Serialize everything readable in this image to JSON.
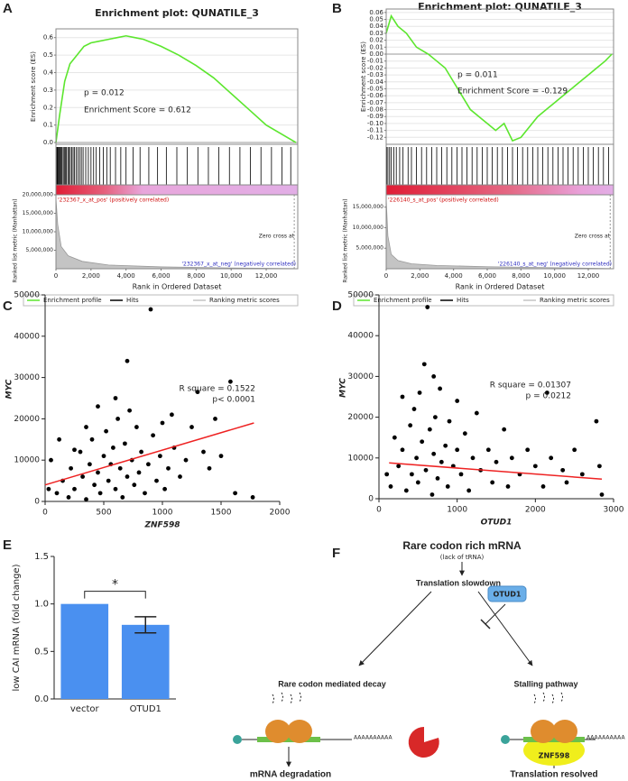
{
  "chart_data": [
    {
      "type": "enrichment",
      "panel": "A",
      "title": "Enrichment plot: QUNATILE_3",
      "ylabel": "Enrichment score (ES)",
      "metric_label": "Ranked list metric (Manhattan)",
      "xlabel": "Rank in Ordered Dataset",
      "annotations": [
        "p = 0.012",
        "Enrichment Score = 0.612"
      ],
      "pos_label": "'232367_x_at_pos' (positively correlated)",
      "neg_label": "'232367_x_at_neg' (negatively correlated)",
      "zero_label": "Zero cross at",
      "x": [
        0,
        200,
        500,
        800,
        1200,
        1600,
        2000,
        2500,
        3000,
        3500,
        4000,
        4500,
        5000,
        6000,
        7000,
        8000,
        9000,
        10000,
        11000,
        12000,
        13700
      ],
      "values": [
        0,
        0.15,
        0.35,
        0.45,
        0.5,
        0.55,
        0.57,
        0.58,
        0.59,
        0.6,
        0.61,
        0.6,
        0.59,
        0.55,
        0.5,
        0.44,
        0.37,
        0.28,
        0.19,
        0.1,
        0
      ],
      "color": "#5ce62e",
      "hits": [
        20,
        60,
        100,
        150,
        200,
        250,
        300,
        350,
        420,
        480,
        550,
        600,
        680,
        750,
        820,
        900,
        980,
        1050,
        1150,
        1250,
        1350,
        1450,
        1550,
        1700,
        1850,
        2000,
        2150,
        2300,
        2500,
        2700,
        2900,
        3100,
        3400,
        3700,
        4000,
        4400,
        4800,
        5300,
        5800,
        6300,
        6900,
        7500,
        8100,
        8700,
        9300,
        9900,
        10500,
        11100,
        11700,
        12300,
        12900,
        13400
      ],
      "hits_color": "#000000",
      "metric_x": [
        0,
        100,
        300,
        700,
        1500,
        3000,
        6000,
        10000,
        13600
      ],
      "metric_values": [
        19000000,
        12000000,
        6000000,
        3500000,
        2000000,
        1000000,
        500000,
        200000,
        50000
      ],
      "metric_color": "#c4c4c4",
      "xlim": [
        0,
        13800
      ],
      "xticks": [
        0,
        {
          "value": 2000,
          "label": "2,000"
        },
        {
          "value": 4000,
          "label": "4,000"
        },
        {
          "value": 6000,
          "label": "6,000"
        },
        {
          "value": 8000,
          "label": "8,000"
        },
        {
          "value": 10000,
          "label": "10,000"
        },
        {
          "value": 12000,
          "label": "12,000"
        }
      ],
      "ylim": [
        -0.01,
        0.65
      ],
      "yticks": [
        {
          "value": 0,
          "label": "0.0"
        },
        0.1,
        0.2,
        0.3,
        0.4,
        0.5,
        0.6
      ],
      "metric_ylim": [
        0,
        20000000
      ],
      "metric_yticks": [
        {
          "value": 5000000,
          "label": "5,000,000"
        },
        {
          "value": 10000000,
          "label": "10,000,000"
        },
        {
          "value": 15000000,
          "label": "15,000,000"
        },
        {
          "value": 20000000,
          "label": "20,000,000"
        }
      ],
      "legend": [
        {
          "name": "Enrichment profile",
          "color": "#5ce62e"
        },
        {
          "name": "Hits",
          "color": "#000000"
        },
        {
          "name": "Ranking metric scores",
          "color": "#c4c4c4"
        }
      ],
      "grid": true
    },
    {
      "type": "enrichment",
      "panel": "B",
      "title": "Enrichment plot: QUNATILE_3",
      "ylabel": "Enrichment score (ES)",
      "metric_label": "Ranked list metric (Manhattan)",
      "xlabel": "Rank in Ordered Dataset",
      "annotations": [
        "p = 0.011",
        "Enrichment Score =   -0.129"
      ],
      "pos_label": "'226140_s_at_pos' (positively correlated)",
      "neg_label": "'226140_s_at_neg' (negatively correlated)",
      "zero_label": "Zero cross at",
      "x": [
        0,
        300,
        700,
        1200,
        1800,
        2500,
        3000,
        3500,
        4000,
        4500,
        5000,
        5500,
        6000,
        6500,
        7000,
        7500,
        8000,
        8500,
        9000,
        9500,
        10000,
        10500,
        11000,
        11500,
        12000,
        12500,
        13000,
        13400
      ],
      "values": [
        0.03,
        0.055,
        0.04,
        0.03,
        0.01,
        0,
        -0.01,
        -0.02,
        -0.04,
        -0.06,
        -0.08,
        -0.09,
        -0.1,
        -0.11,
        -0.1,
        -0.125,
        -0.12,
        -0.105,
        -0.09,
        -0.08,
        -0.07,
        -0.06,
        -0.05,
        -0.04,
        -0.03,
        -0.02,
        -0.01,
        0
      ],
      "color": "#5ce62e",
      "hits": [
        30,
        100,
        200,
        300,
        450,
        600,
        800,
        1000,
        1300,
        1500,
        1800,
        2100,
        2400,
        2700,
        3000,
        3300,
        3600,
        3900,
        4200,
        4500,
        4800,
        5100,
        5400,
        5700,
        6000,
        6300,
        6600,
        6900,
        7200,
        7500,
        7800,
        8100,
        8400,
        8700,
        9000,
        9300,
        9600,
        9900,
        10200,
        10500,
        10800,
        11100,
        11400,
        11700,
        12000,
        12300,
        12600,
        12900,
        13200
      ],
      "hits_color": "#000000",
      "metric_x": [
        0,
        100,
        300,
        700,
        1500,
        3000,
        6000,
        10000,
        13300
      ],
      "metric_values": [
        17000000,
        8000000,
        3500000,
        2000000,
        1200000,
        800000,
        500000,
        250000,
        50000
      ],
      "metric_color": "#c4c4c4",
      "xlim": [
        0,
        13500
      ],
      "xticks": [
        0,
        {
          "value": 2000,
          "label": "2,000"
        },
        {
          "value": 4000,
          "label": "4,000"
        },
        {
          "value": 6000,
          "label": "6,000"
        },
        {
          "value": 8000,
          "label": "8,000"
        },
        {
          "value": 10000,
          "label": "10,000"
        },
        {
          "value": 12000,
          "label": "12,000"
        }
      ],
      "ylim": [
        -0.13,
        0.065
      ],
      "yticks": [
        -0.12,
        -0.11,
        {
          "value": -0.1,
          "label": "-0.10"
        },
        -0.09,
        -0.08,
        -0.07,
        -0.06,
        -0.05,
        -0.04,
        -0.03,
        -0.02,
        -0.01,
        {
          "value": 0,
          "label": "0.00"
        },
        0.01,
        0.02,
        0.03,
        0.04,
        0.05,
        0.06
      ],
      "metric_ylim": [
        0,
        18000000
      ],
      "metric_yticks": [
        {
          "value": 5000000,
          "label": "5,000,000"
        },
        {
          "value": 10000000,
          "label": "10,000,000"
        },
        {
          "value": 15000000,
          "label": "15,000,000"
        }
      ],
      "legend": [
        {
          "name": "Enrichment profile",
          "color": "#5ce62e"
        },
        {
          "name": "Hits",
          "color": "#000000"
        },
        {
          "name": "Ranking metric scores",
          "color": "#c4c4c4"
        }
      ],
      "grid": true
    },
    {
      "type": "scatter",
      "panel": "C",
      "xlabel": "ZNF598",
      "ylabel": "MYC",
      "annotations": [
        "R square = 0.1522",
        "p< 0.0001"
      ],
      "x": [
        100,
        150,
        200,
        220,
        250,
        300,
        320,
        350,
        380,
        400,
        420,
        450,
        470,
        500,
        520,
        540,
        560,
        580,
        600,
        620,
        640,
        660,
        680,
        700,
        720,
        740,
        760,
        780,
        800,
        820,
        850,
        880,
        900,
        920,
        950,
        980,
        1000,
        1020,
        1050,
        1080,
        1100,
        1150,
        1200,
        1250,
        1300,
        1350,
        1400,
        1450,
        1500,
        1580,
        1620,
        1770,
        50,
        120,
        30,
        700,
        600,
        450,
        350,
        250
      ],
      "values": [
        2000,
        5000,
        1000,
        8000,
        3000,
        12000,
        6000,
        500,
        9000,
        15000,
        4000,
        7000,
        2000,
        11000,
        17000,
        5000,
        9000,
        13000,
        3000,
        20000,
        8000,
        1000,
        14000,
        6000,
        22000,
        10000,
        4000,
        18000,
        7000,
        12000,
        2000,
        9000,
        46500,
        16000,
        5000,
        11000,
        19000,
        3000,
        8000,
        21000,
        13000,
        6000,
        10000,
        18000,
        26500,
        12000,
        8000,
        20000,
        11000,
        29000,
        2000,
        1000,
        10000,
        15000,
        3000,
        34000,
        25000,
        23000,
        18000,
        12500
      ],
      "color": "#000000",
      "fit": {
        "x": [
          0,
          1780
        ],
        "values": [
          4000,
          19000
        ],
        "color": "#ee2222"
      },
      "xlim": [
        0,
        2000
      ],
      "xticks": [
        0,
        500,
        1000,
        1500,
        2000
      ],
      "ylim": [
        0,
        50000
      ],
      "yticks": [
        0,
        10000,
        20000,
        30000,
        40000,
        50000
      ],
      "grid": false
    },
    {
      "type": "scatter",
      "panel": "D",
      "xlabel": "OTUD1",
      "ylabel": "MYC",
      "annotations": [
        "R square = 0.01307",
        "p = 0.0212"
      ],
      "x": [
        150,
        200,
        250,
        300,
        350,
        400,
        420,
        450,
        480,
        500,
        520,
        550,
        580,
        600,
        620,
        650,
        680,
        700,
        720,
        750,
        780,
        800,
        850,
        880,
        900,
        950,
        1000,
        1050,
        1100,
        1150,
        1200,
        1250,
        1300,
        1400,
        1450,
        1500,
        1600,
        1650,
        1700,
        1800,
        1900,
        2000,
        2100,
        2150,
        2200,
        2350,
        2400,
        2500,
        2600,
        2780,
        2820,
        2850,
        100,
        300,
        700,
        1000
      ],
      "values": [
        3000,
        15000,
        8000,
        12000,
        2000,
        18000,
        6000,
        22000,
        10000,
        4000,
        26000,
        14000,
        33000,
        7000,
        47000,
        17000,
        1000,
        11000,
        20000,
        5000,
        27000,
        9000,
        13000,
        3000,
        19000,
        8000,
        12000,
        6000,
        16000,
        2000,
        10000,
        21000,
        7000,
        12000,
        4000,
        9000,
        17000,
        3000,
        10000,
        6000,
        12000,
        8000,
        3000,
        26000,
        10000,
        7000,
        4000,
        12000,
        6000,
        19000,
        8000,
        1000,
        6000,
        25000,
        30000,
        24000
      ],
      "color": "#000000",
      "fit": {
        "x": [
          130,
          2850
        ],
        "values": [
          8800,
          4800
        ],
        "color": "#ee2222"
      },
      "xlim": [
        0,
        3000
      ],
      "xticks": [
        0,
        1000,
        2000,
        3000
      ],
      "ylim": [
        0,
        50000
      ],
      "yticks": [
        0,
        10000,
        20000,
        30000,
        40000,
        50000
      ],
      "grid": false
    },
    {
      "type": "bar",
      "panel": "E",
      "ylabel": "low CAI mRNA (fold change)",
      "categories": [
        "vector",
        "OTUD1"
      ],
      "values": [
        1.0,
        0.78
      ],
      "errors": [
        null,
        0.085
      ],
      "color": "#4a90f0",
      "significance": "*",
      "ylim": [
        0,
        1.5
      ],
      "yticks": [
        {
          "value": 0,
          "label": "0.0"
        },
        0.5,
        {
          "value": 1,
          "label": "1.0"
        },
        1.5
      ],
      "grid": false
    }
  ],
  "diagram": {
    "panel": "F",
    "title": "Rare codon rich mRNA",
    "subtitle": "(lack of tRNA)",
    "step": "Translation slowdown",
    "regulator": "OTUD1",
    "left": "Rare codon mediated decay",
    "right": "Stalling pathway",
    "factor": "ZNF598",
    "tail": "AAAAAAAAAA",
    "left_outcome": "mRNA degradation",
    "right_outcome": "Translation resolved"
  }
}
